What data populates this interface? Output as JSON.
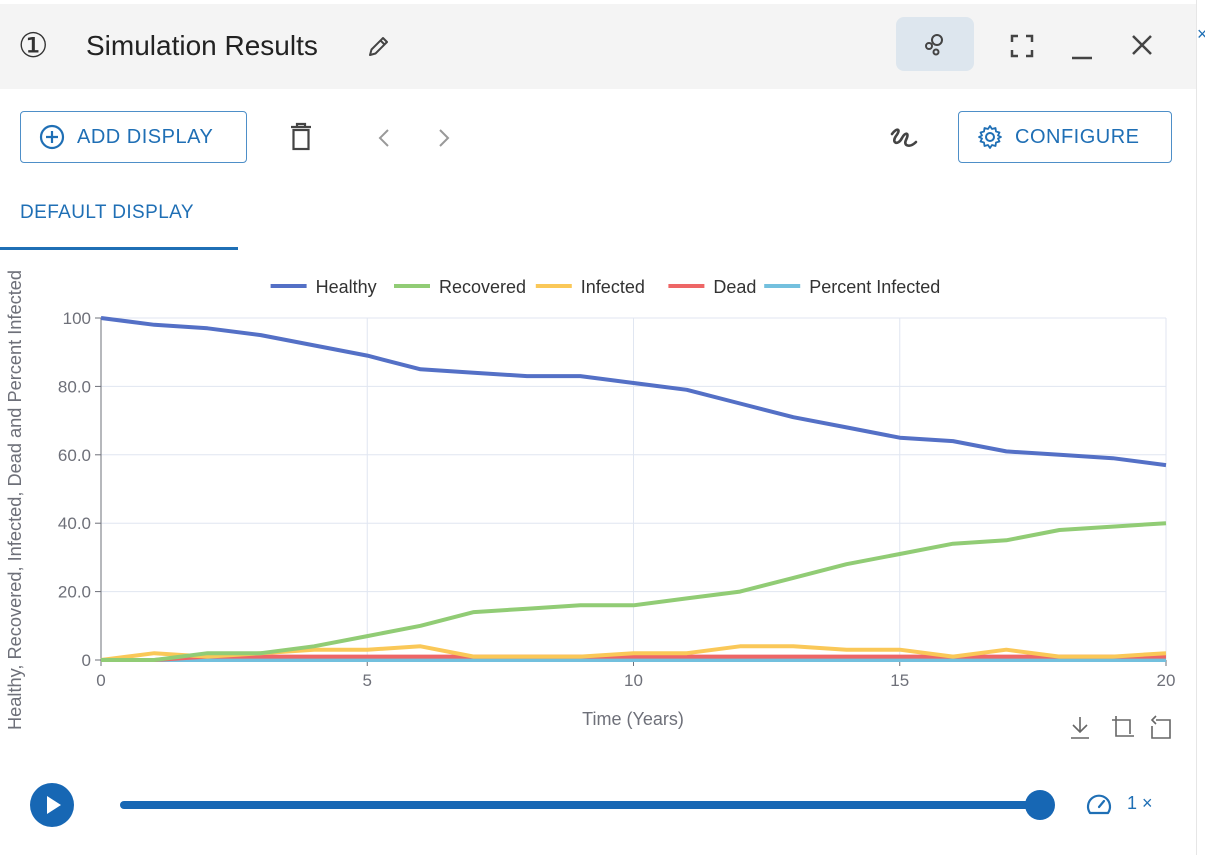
{
  "header": {
    "step": "①",
    "title": "Simulation Results"
  },
  "toolbar": {
    "add_display_label": "ADD DISPLAY",
    "configure_label": "CONFIGURE"
  },
  "tabs": [
    {
      "label": "DEFAULT DISPLAY",
      "active": true
    }
  ],
  "chart_data": {
    "type": "line",
    "xlabel": "Time (Years)",
    "ylabel": "Healthy, Recovered, Infected, Dead and Percent Infected",
    "xlim": [
      0,
      20
    ],
    "ylim": [
      0,
      100
    ],
    "x_ticks": [
      "0",
      "5",
      "10",
      "15",
      "20"
    ],
    "y_ticks": [
      "0",
      "20.0",
      "40.0",
      "60.0",
      "80.0",
      "100"
    ],
    "grid": true,
    "legend_position": "top-center",
    "x": [
      0,
      1,
      2,
      3,
      4,
      5,
      6,
      7,
      8,
      9,
      10,
      11,
      12,
      13,
      14,
      15,
      16,
      17,
      18,
      19,
      20
    ],
    "series": [
      {
        "name": "Healthy",
        "color": "#5470c6",
        "values": [
          100,
          98,
          97,
          95,
          92,
          89,
          85,
          84,
          83,
          83,
          81,
          79,
          75,
          71,
          68,
          65,
          64,
          61,
          60,
          59,
          57
        ]
      },
      {
        "name": "Recovered",
        "color": "#91cc75",
        "values": [
          0,
          0,
          2,
          2,
          4,
          7,
          10,
          14,
          15,
          16,
          16,
          18,
          20,
          24,
          28,
          31,
          34,
          35,
          38,
          39,
          40
        ]
      },
      {
        "name": "Infected",
        "color": "#fac858",
        "values": [
          0,
          2,
          1,
          2,
          3,
          3,
          4,
          1,
          1,
          1,
          2,
          2,
          4,
          4,
          3,
          3,
          1,
          3,
          1,
          1,
          2
        ]
      },
      {
        "name": "Dead",
        "color": "#ee6666",
        "values": [
          0,
          0,
          1,
          1,
          1,
          1,
          1,
          1,
          1,
          1,
          1,
          1,
          1,
          1,
          1,
          1,
          1,
          1,
          1,
          1,
          1
        ]
      },
      {
        "name": "Percent Infected",
        "color": "#73c0de",
        "values": [
          0,
          0,
          0,
          0,
          0,
          0,
          0,
          0,
          0,
          0,
          0,
          0,
          0,
          0,
          0,
          0,
          0,
          0,
          0,
          0,
          0
        ]
      }
    ]
  },
  "playback": {
    "progress": 1.0,
    "speed_label": "1 ×"
  },
  "colors": {
    "accent": "#1f6fb5",
    "header_bg": "#f4f4f4"
  },
  "icons": {
    "edit": "pencil-icon",
    "compare": "circles-icon",
    "fullscreen": "expand-icon",
    "minimize": "minimize-icon",
    "close": "close-icon",
    "add": "plus-circle-icon",
    "delete": "trash-icon",
    "prev": "chevron-left-icon",
    "next": "chevron-right-icon",
    "draw": "scribble-icon",
    "configure": "gear-icon",
    "download": "download-icon",
    "zoom": "zoom-box-icon",
    "reset": "restore-icon",
    "play": "play-icon",
    "speed": "speedometer-icon"
  }
}
